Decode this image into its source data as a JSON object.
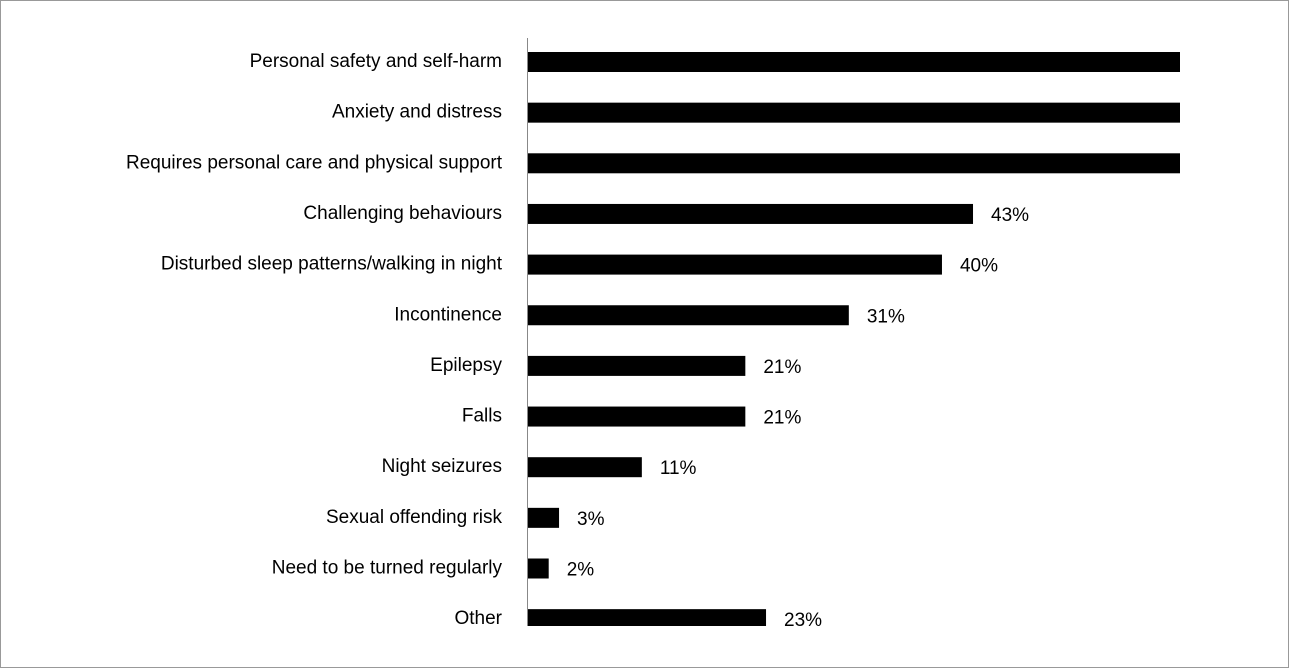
{
  "chart_data": {
    "type": "hbar",
    "categories": [
      "Personal safety and self-harm",
      "Anxiety and distress",
      "Requires personal care and physical support",
      "Challenging behaviours",
      "Disturbed sleep patterns/walking in night",
      "Incontinence",
      "Epilepsy",
      "Falls",
      "Night seizures",
      "Sexual offending risk",
      "Need to be turned regularly",
      "Other"
    ],
    "values": [
      63,
      63,
      63,
      43,
      40,
      31,
      21,
      21,
      11,
      3,
      2,
      23
    ],
    "value_labels": [
      null,
      null,
      null,
      "43%",
      "40%",
      "31%",
      "21%",
      "21%",
      "11%",
      "3%",
      "2%",
      "23%"
    ],
    "color": "#000000",
    "xlim": [
      0,
      63
    ]
  }
}
